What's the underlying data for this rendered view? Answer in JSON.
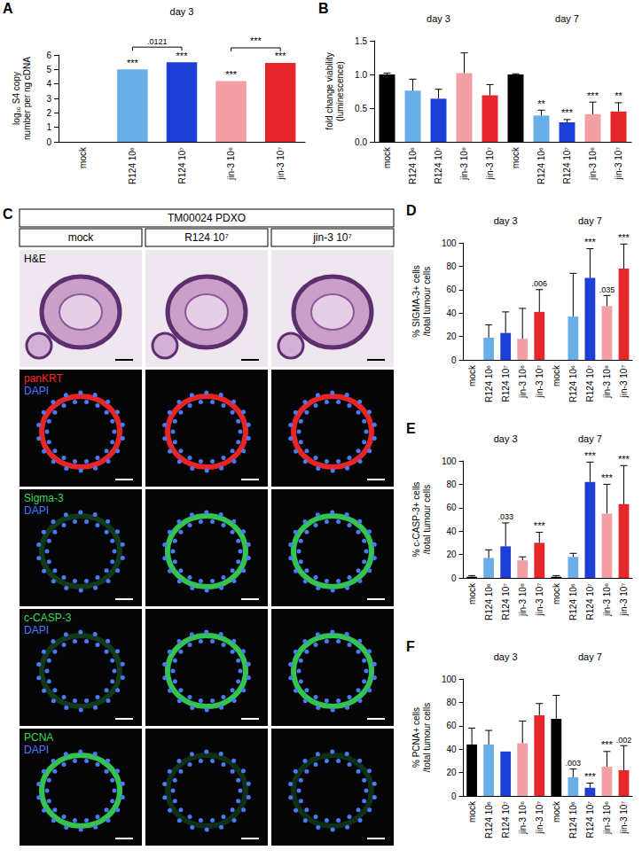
{
  "chart_data": [
    {
      "panel": "A",
      "type": "bar",
      "group_labels": [
        "day 3"
      ],
      "categories": [
        "mock",
        "R124 10⁶",
        "R124 10⁷",
        "jin-3 10⁶",
        "jin-3 10⁷"
      ],
      "values": [
        0,
        5.0,
        5.5,
        4.2,
        5.45
      ],
      "significance": [
        null,
        "***",
        "***",
        "***",
        "***"
      ],
      "colors": [
        "#000000",
        "#6aaee8",
        "#1d3fd6",
        "#f2a0a4",
        "#e5262b"
      ],
      "ylabel": "log₁₀ S4 copy number per ng cDNA",
      "ylim": [
        0,
        6
      ],
      "yticks": [
        0,
        1,
        2,
        3,
        4,
        5,
        6
      ],
      "grid": false,
      "brackets": [
        {
          "from": "R124 10⁶",
          "to": "R124 10⁷",
          "label": ".0121"
        },
        {
          "from": "jin-3 10⁶",
          "to": "jin-3 10⁷",
          "label": "***"
        }
      ]
    },
    {
      "panel": "B",
      "type": "bar",
      "group_labels": [
        "day 3",
        "day 7"
      ],
      "categories": [
        "mock",
        "R124 10⁶",
        "R124 10⁷",
        "jin-3 10⁶",
        "jin-3 10⁷",
        "mock",
        "R124 10⁶",
        "R124 10⁷",
        "jin-3 10⁶",
        "jin-3 10⁷"
      ],
      "values": [
        1.0,
        0.76,
        0.64,
        1.02,
        0.69,
        1.0,
        0.39,
        0.29,
        0.41,
        0.45
      ],
      "errors": [
        0.02,
        0.17,
        0.14,
        0.3,
        0.16,
        0.01,
        0.08,
        0.04,
        0.18,
        0.13
      ],
      "significance": [
        null,
        null,
        null,
        null,
        null,
        null,
        "**",
        "***",
        "***",
        "**"
      ],
      "colors": [
        "#000000",
        "#6aaee8",
        "#1d3fd6",
        "#f2a0a4",
        "#e5262b",
        "#000000",
        "#6aaee8",
        "#1d3fd6",
        "#f2a0a4",
        "#e5262b"
      ],
      "ylabel": "fold change viability (luminescence)",
      "ylim": [
        0,
        1.5
      ],
      "yticks": [
        {
          "value": 0,
          "label": "0.0"
        },
        {
          "value": 0.5,
          "label": "0.5"
        },
        {
          "value": 1,
          "label": "1.0"
        },
        {
          "value": 1.5,
          "label": "1.5"
        }
      ],
      "grid": false
    },
    {
      "panel": "D",
      "type": "bar",
      "group_labels": [
        "day 3",
        "day 7"
      ],
      "categories": [
        "mock",
        "R124 10⁶",
        "R124 10⁷",
        "jin-3 10⁶",
        "jin-3 10⁷",
        "mock",
        "R124 10⁶",
        "R124 10⁷",
        "jin-3 10⁶",
        "jin-3 10⁷"
      ],
      "values": [
        0,
        19,
        23,
        18,
        41,
        0,
        37,
        70,
        46,
        78
      ],
      "errors": [
        null,
        11,
        18,
        26,
        19,
        null,
        37,
        25,
        9,
        21
      ],
      "significance": [
        null,
        null,
        null,
        null,
        ".006",
        null,
        null,
        "***",
        ".035",
        "***"
      ],
      "colors": [
        "#000000",
        "#6aaee8",
        "#1d3fd6",
        "#f2a0a4",
        "#e5262b",
        "#000000",
        "#6aaee8",
        "#1d3fd6",
        "#f2a0a4",
        "#e5262b"
      ],
      "ylabel": "% SIGMA-3+ cells /total tumour cells",
      "ylim": [
        0,
        100
      ],
      "yticks": [
        0,
        20,
        40,
        60,
        80,
        100
      ],
      "grid": false
    },
    {
      "panel": "E",
      "type": "bar",
      "group_labels": [
        "day 3",
        "day 7"
      ],
      "categories": [
        "mock",
        "R124 10⁶",
        "R124 10⁷",
        "jin-3 10⁶",
        "jin-3 10⁷",
        "mock",
        "R124 10⁶",
        "R124 10⁷",
        "jin-3 10⁶",
        "jin-3 10⁷"
      ],
      "values": [
        1,
        17,
        27,
        15,
        30,
        1,
        18,
        82,
        55,
        63
      ],
      "errors": [
        1,
        7,
        20,
        3,
        9,
        1,
        3,
        17,
        25,
        33
      ],
      "significance": [
        null,
        null,
        ".033",
        null,
        "***",
        null,
        null,
        "***",
        "***",
        "***"
      ],
      "colors": [
        "#000000",
        "#6aaee8",
        "#1d3fd6",
        "#f2a0a4",
        "#e5262b",
        "#000000",
        "#6aaee8",
        "#1d3fd6",
        "#f2a0a4",
        "#e5262b"
      ],
      "ylabel": "% c-CASP-3+ cells /total tumour cells",
      "ylim": [
        0,
        100
      ],
      "yticks": [
        0,
        20,
        40,
        60,
        80,
        100
      ],
      "grid": false
    },
    {
      "panel": "F",
      "type": "bar",
      "group_labels": [
        "day 3",
        "day 7"
      ],
      "categories": [
        "mock",
        "R124 10⁶",
        "R124 10⁷",
        "jin-3 10⁶",
        "jin-3 10⁷",
        "mock",
        "R124 10⁶",
        "R124 10⁷",
        "jin-3 10⁶",
        "jin-3 10⁷"
      ],
      "values": [
        44,
        44,
        38,
        45,
        69,
        66,
        16,
        7,
        25,
        22
      ],
      "errors": [
        14,
        12,
        null,
        19,
        10,
        20,
        7,
        4,
        13,
        21
      ],
      "significance": [
        null,
        null,
        null,
        null,
        null,
        null,
        ".003",
        "***",
        "***",
        ".002"
      ],
      "colors": [
        "#000000",
        "#6aaee8",
        "#1d3fd6",
        "#f2a0a4",
        "#e5262b",
        "#000000",
        "#6aaee8",
        "#1d3fd6",
        "#f2a0a4",
        "#e5262b"
      ],
      "ylabel": "% PCNA+ cells /total tumour cells",
      "ylim": [
        0,
        100
      ],
      "yticks": [
        0,
        20,
        40,
        60,
        80,
        100
      ],
      "grid": false
    }
  ],
  "panel_C": {
    "panel": "C",
    "title": "TM00024 PDXO",
    "columns": [
      "mock",
      "R124 10⁷",
      "jin-3 10⁷"
    ],
    "rows": [
      {
        "stain": "H&E",
        "color": "#000000"
      },
      {
        "stain": "panKRT",
        "color": "#ff2a2a",
        "counterstain": "DAPI",
        "counter_color": "#4a7bff"
      },
      {
        "stain": "Sigma-3",
        "color": "#38d85a",
        "counterstain": "DAPI",
        "counter_color": "#4a7bff"
      },
      {
        "stain": "c-CASP-3",
        "color": "#38d85a",
        "counterstain": "DAPI",
        "counter_color": "#4a7bff"
      },
      {
        "stain": "PCNA",
        "color": "#38d85a",
        "counterstain": "DAPI",
        "counter_color": "#4a7bff"
      }
    ]
  }
}
